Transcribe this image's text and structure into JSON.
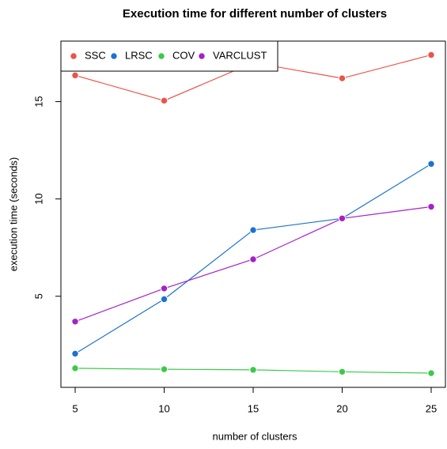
{
  "chart_data": {
    "type": "line",
    "title": "Execution time for different number of clusters",
    "x_label": "number of clusters",
    "y_label": "execution time (seconds)",
    "x": [
      5,
      10,
      15,
      20,
      25
    ],
    "series": [
      {
        "name": "SSC",
        "color": "#ee5249",
        "values": [
          16.35,
          15.05,
          17.0,
          16.2,
          17.4
        ]
      },
      {
        "name": "LRSC",
        "color": "#1a73d0",
        "values": [
          2.05,
          4.85,
          8.4,
          9.0,
          11.8
        ]
      },
      {
        "name": "COV",
        "color": "#3cc94a",
        "values": [
          1.3,
          1.25,
          1.22,
          1.12,
          1.05
        ]
      },
      {
        "name": "VARCLUST",
        "color": "#a620c8",
        "values": [
          3.7,
          5.4,
          6.9,
          9.0,
          9.6
        ]
      }
    ],
    "xlim": [
      4.2,
      25.8
    ],
    "ylim": [
      0.32,
      18.11
    ],
    "xticks": [
      5,
      10,
      15,
      20,
      25
    ],
    "yticks": [
      5,
      10,
      15
    ],
    "legend": "topleft"
  }
}
